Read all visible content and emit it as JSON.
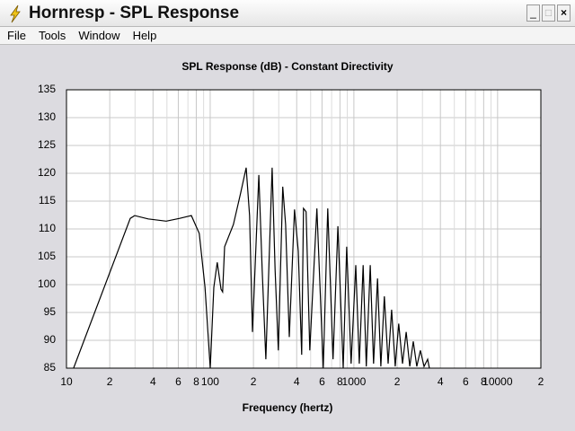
{
  "window": {
    "title": "Hornresp - SPL Response",
    "menu": [
      "File",
      "Tools",
      "Window",
      "Help"
    ]
  },
  "chart_data": {
    "type": "line",
    "title": "SPL Response (dB) - Constant Directivity",
    "x_label": "Frequency (hertz)",
    "log_x": true,
    "grid": true,
    "xlim": [
      10,
      20000
    ],
    "ylim": [
      85,
      135
    ],
    "xticks": [
      10,
      {
        "value": 20,
        "label": "2"
      },
      {
        "value": 40,
        "label": "4"
      },
      {
        "value": 60,
        "label": "6"
      },
      {
        "value": 80,
        "label": "8"
      },
      100,
      {
        "value": 200,
        "label": "2"
      },
      {
        "value": 400,
        "label": "4"
      },
      {
        "value": 600,
        "label": "6"
      },
      {
        "value": 800,
        "label": "8"
      },
      1000,
      {
        "value": 2000,
        "label": "2"
      },
      {
        "value": 4000,
        "label": "4"
      },
      {
        "value": 6000,
        "label": "6"
      },
      {
        "value": 8000,
        "label": "8"
      },
      10000,
      {
        "value": 20000,
        "label": "2"
      }
    ],
    "xminor_ticks": [
      30,
      50,
      70,
      90,
      300,
      500,
      700,
      900,
      3000,
      5000,
      7000,
      9000
    ],
    "yticks": [
      85,
      90,
      95,
      100,
      105,
      110,
      115,
      120,
      125,
      130,
      135
    ],
    "series": [
      {
        "color": "#000000",
        "x": [
          11.2,
          27.8,
          29.8,
          37,
          49.4,
          61.3,
          74,
          84,
          92,
          100,
          106,
          112,
          119,
          122,
          126,
          145,
          163,
          178,
          188,
          197,
          218,
          230,
          244,
          270,
          283,
          298,
          320,
          335,
          355,
          386,
          410,
          433,
          446,
          465,
          493,
          553,
          612,
          658,
          716,
          774,
          842,
          891,
          957,
          1030,
          1090,
          1160,
          1220,
          1300,
          1370,
          1460,
          1540,
          1630,
          1730,
          1830,
          1940,
          2050,
          2180,
          2310,
          2450,
          2590,
          2740,
          2900,
          3080,
          3260,
          3350
        ],
        "values": [
          85,
          111.9,
          112.4,
          111.8,
          111.4,
          111.9,
          112.4,
          109.2,
          99.5,
          85,
          99.5,
          104,
          99.2,
          98.7,
          106.8,
          110.8,
          116.5,
          121,
          112.4,
          91.5,
          119.7,
          102.7,
          86.6,
          121,
          102.7,
          88.2,
          117.6,
          110.8,
          90.6,
          113.5,
          106,
          87.4,
          113.7,
          113.1,
          88.2,
          113.7,
          85,
          113.7,
          86.6,
          110.5,
          85,
          106.8,
          85.8,
          103.5,
          85.8,
          103.5,
          85.3,
          103.5,
          85.8,
          101.1,
          85.3,
          97.9,
          85.8,
          95.5,
          85.3,
          93,
          85.8,
          91.5,
          85.3,
          89.8,
          85.3,
          88.2,
          85.3,
          86.6,
          85
        ]
      }
    ]
  }
}
